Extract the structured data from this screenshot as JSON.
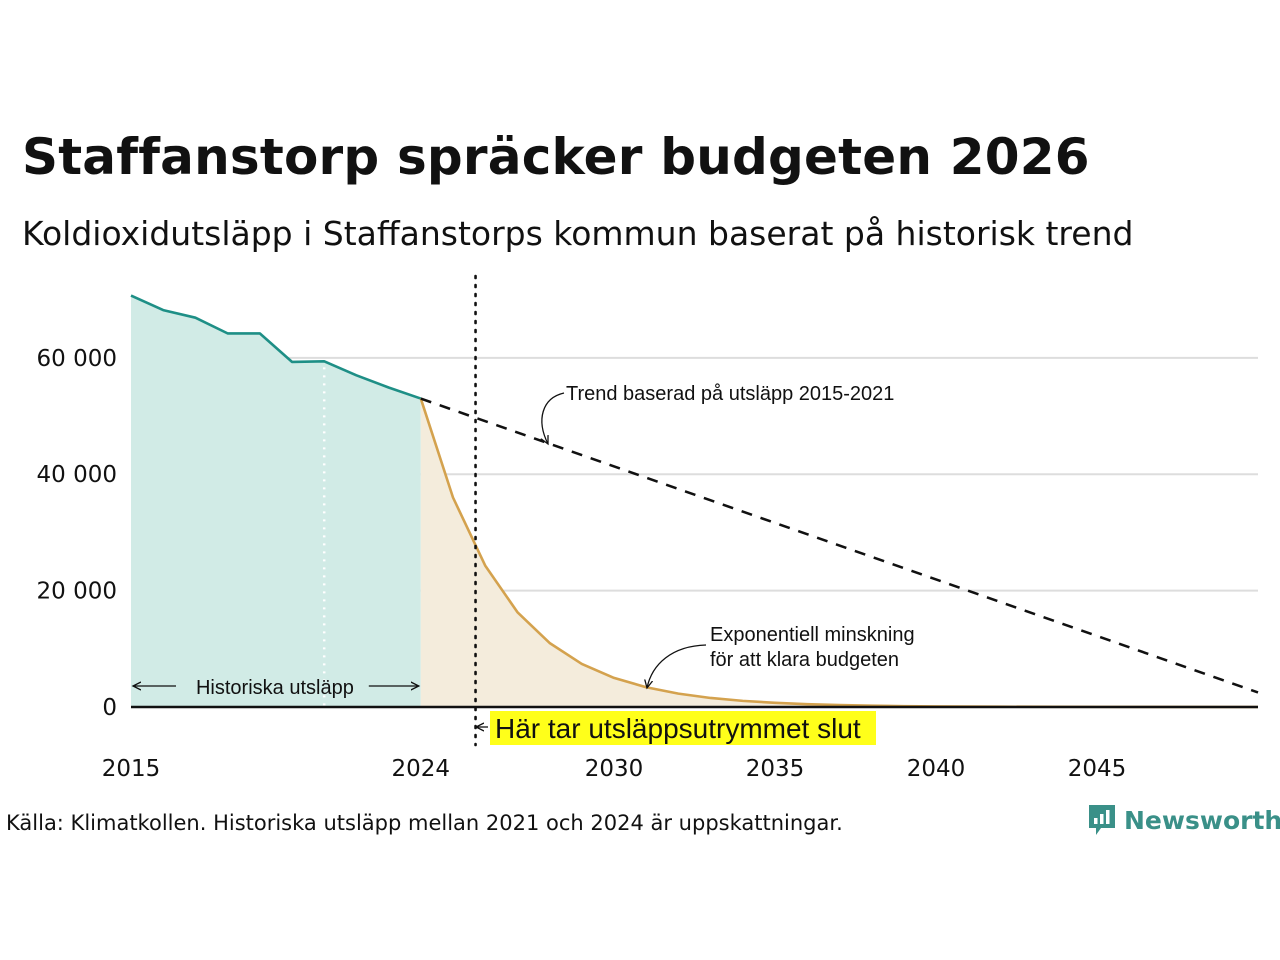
{
  "title": "Staffanstorp spräcker budgeten 2026",
  "subtitle": "Koldioxidutsläpp i Staffanstorps kommun baserat på historisk trend",
  "source": "Källa: Klimatkollen. Historiska utsläpp mellan 2021 och 2024 är uppskattningar.",
  "brand": {
    "name": "Newsworthy",
    "color": "#3a9088"
  },
  "chart_data": {
    "type": "area",
    "xlim": [
      2015,
      2050
    ],
    "ylim": [
      0,
      72000
    ],
    "yticks": [
      0,
      20000,
      40000,
      60000
    ],
    "ytick_labels": [
      "0",
      "20 000",
      "40 000",
      "60 000"
    ],
    "xticks": [
      2015,
      2024,
      2030,
      2035,
      2040,
      2045
    ],
    "xtick_labels": [
      "2015",
      "2024",
      "2030",
      "2035",
      "2040",
      "2045"
    ],
    "grid": true,
    "series": [
      {
        "name": "Historiska utsläpp",
        "color": "#1e8f86",
        "fill": "#d1ebe6",
        "x": [
          2015,
          2016,
          2017,
          2018,
          2019,
          2020,
          2021,
          2022,
          2023,
          2024
        ],
        "values": [
          70700,
          68200,
          66900,
          64200,
          64200,
          59300,
          59400,
          57000,
          54900,
          53000
        ]
      },
      {
        "name": "Exponentiell minskning för att klara budgeten",
        "color": "#d4a24e",
        "fill": "#f4ecdc",
        "x": [
          2024,
          2025,
          2026,
          2027,
          2028,
          2029,
          2030,
          2031,
          2032,
          2033,
          2034,
          2035,
          2036,
          2037,
          2038,
          2039,
          2040,
          2042,
          2045,
          2050
        ],
        "values": [
          53000,
          36000,
          24300,
          16300,
          11000,
          7400,
          5000,
          3400,
          2300,
          1550,
          1050,
          720,
          490,
          330,
          220,
          150,
          100,
          50,
          20,
          0
        ]
      },
      {
        "name": "Trend baserad på utsläpp 2015-2021",
        "color": "#111111",
        "style": "dashed",
        "x": [
          2024,
          2050
        ],
        "values": [
          53000,
          2500
        ]
      }
    ],
    "vlines": [
      {
        "x": 2021,
        "style": "dotted",
        "color": "#ffffff"
      },
      {
        "x": 2025.7,
        "style": "dotted",
        "color": "#111111"
      }
    ],
    "annotations": {
      "trend": "Trend baserad på utsläpp 2015-2021",
      "exp_line1": "Exponentiell minskning",
      "exp_line2": "för att klara budgeten",
      "historical": "Historiska utsläpp",
      "budget_end": "Här tar utsläppsutrymmet slut",
      "budget_end_highlight": "#ffff1a"
    }
  }
}
